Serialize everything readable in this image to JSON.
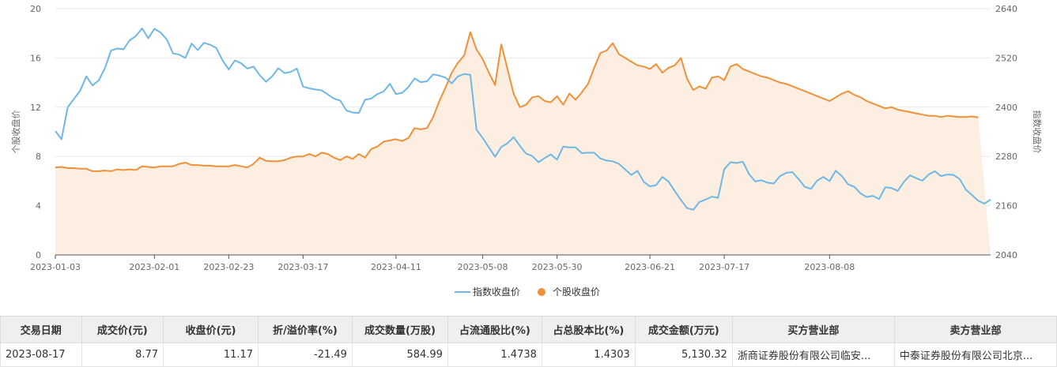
{
  "chart_data": {
    "type": "line",
    "x_ticks": [
      "2023-01-03",
      "2023-02-01",
      "2023-02-23",
      "2023-03-17",
      "2023-04-11",
      "2023-05-08",
      "2023-05-30",
      "2023-06-21",
      "2023-07-17",
      "2023-08-08"
    ],
    "left_axis": {
      "label": "个股收盘价",
      "ylim": [
        0,
        20
      ],
      "ticks": [
        "0",
        "4",
        "8",
        "12",
        "16",
        "20"
      ]
    },
    "right_axis": {
      "label": "指数收盘价",
      "ylim": [
        2040,
        2640
      ],
      "ticks": [
        "2040",
        "2160",
        "2280",
        "2400",
        "2520",
        "2640"
      ]
    },
    "legend": [
      "指数收盘价",
      "个股收盘价"
    ],
    "legend_position": "bottom-center",
    "grid": "horizontal",
    "colors": {
      "index": "#6fb7e4",
      "stock": "#f0913a",
      "stock_fill": "#fdeee2"
    },
    "series": [
      {
        "name": "指数收盘价",
        "axis": "right",
        "values": [
          2342,
          2322,
          2400,
          2420,
          2440,
          2475,
          2453,
          2465,
          2495,
          2538,
          2543,
          2541,
          2563,
          2573,
          2592,
          2568,
          2591,
          2582,
          2565,
          2531,
          2528,
          2520,
          2555,
          2539,
          2557,
          2552,
          2544,
          2514,
          2492,
          2514,
          2507,
          2494,
          2499,
          2478,
          2462,
          2475,
          2495,
          2483,
          2486,
          2494,
          2450,
          2446,
          2443,
          2441,
          2431,
          2421,
          2416,
          2392,
          2387,
          2386,
          2418,
          2421,
          2432,
          2438,
          2457,
          2432,
          2435,
          2449,
          2470,
          2461,
          2463,
          2480,
          2477,
          2472,
          2458,
          2475,
          2481,
          2479,
          2345,
          2325,
          2302,
          2279,
          2303,
          2312,
          2327,
          2306,
          2287,
          2281,
          2266,
          2276,
          2285,
          2272,
          2304,
          2302,
          2302,
          2288,
          2289,
          2289,
          2275,
          2270,
          2268,
          2262,
          2248,
          2235,
          2245,
          2218,
          2207,
          2210,
          2230,
          2219,
          2196,
          2174,
          2154,
          2150,
          2169,
          2175,
          2182,
          2179,
          2249,
          2266,
          2264,
          2267,
          2237,
          2219,
          2222,
          2216,
          2214,
          2232,
          2240,
          2242,
          2225,
          2206,
          2201,
          2221,
          2230,
          2220,
          2245,
          2232,
          2212,
          2206,
          2190,
          2181,
          2184,
          2176,
          2205,
          2203,
          2196,
          2218,
          2234,
          2227,
          2221,
          2236,
          2244,
          2232,
          2236,
          2235,
          2225,
          2199,
          2186,
          2172,
          2165,
          2175
        ]
      },
      {
        "name": "个股收盘价",
        "axis": "left",
        "values": [
          7.1,
          7.15,
          7.05,
          7.05,
          7,
          7,
          6.8,
          6.8,
          6.85,
          6.8,
          6.95,
          6.9,
          6.95,
          6.9,
          7.2,
          7.15,
          7.1,
          7.2,
          7.2,
          7.2,
          7.4,
          7.5,
          7.3,
          7.3,
          7.25,
          7.25,
          7.2,
          7.2,
          7.2,
          7.3,
          7.2,
          7.1,
          7.4,
          7.9,
          7.65,
          7.6,
          7.6,
          7.7,
          7.9,
          8,
          8,
          8.2,
          8,
          8.3,
          8.2,
          7.9,
          7.7,
          8,
          7.8,
          8.2,
          7.9,
          8.6,
          8.8,
          9.2,
          9.3,
          9.4,
          9.25,
          9.5,
          10.3,
          10.2,
          10.3,
          11.2,
          12.5,
          13.6,
          14.8,
          15.6,
          16.2,
          18.1,
          16.7,
          15.9,
          14.8,
          13.8,
          17.1,
          15.1,
          13.1,
          12,
          12.2,
          12.8,
          12.9,
          12.5,
          12.4,
          12.9,
          12.2,
          13.1,
          12.6,
          13.2,
          13.9,
          15.2,
          16.4,
          16.6,
          17.2,
          16.3,
          16.0,
          15.7,
          15.4,
          15.3,
          15.1,
          15.5,
          14.8,
          15.2,
          15.4,
          16,
          14.3,
          13.4,
          13.7,
          13.5,
          14.4,
          14.5,
          14.2,
          15.3,
          15.5,
          15.1,
          14.9,
          14.7,
          14.5,
          14.4,
          14.2,
          14,
          13.9,
          13.7,
          13.5,
          13.3,
          13.1,
          12.9,
          12.7,
          12.5,
          12.8,
          13.1,
          13.3,
          13,
          12.8,
          12.5,
          12.3,
          12.1,
          11.9,
          12,
          11.8,
          11.7,
          11.6,
          11.5,
          11.4,
          11.3,
          11.3,
          11.2,
          11.3,
          11.25,
          11.2,
          11.2,
          11.25,
          11.17
        ]
      }
    ]
  },
  "table": {
    "headers": [
      "交易日期",
      "成交价(元)",
      "收盘价(元)",
      "折/溢价率(%)",
      "成交数量(万股)",
      "占流通股比(%)",
      "占总股本比(%)",
      "成交金额(万元)",
      "买方营业部",
      "卖方营业部"
    ],
    "rows": [
      [
        "2023-08-17",
        "8.77",
        "11.17",
        "-21.49",
        "584.99",
        "1.4738",
        "1.4303",
        "5,130.32",
        "浙商证券股份有限公司临安...",
        "中泰证券股份有限公司北京..."
      ]
    ]
  }
}
